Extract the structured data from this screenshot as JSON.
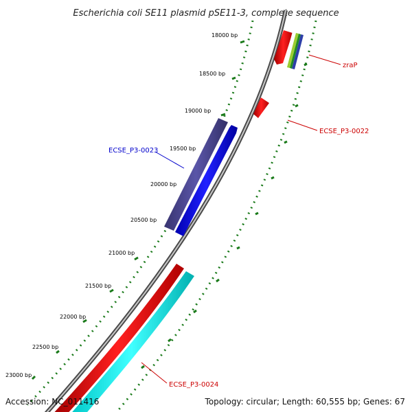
{
  "title": "Escherichia coli SE11 plasmid pSE11-3, complete sequence",
  "footer": {
    "accession": "Accession: NC_011416",
    "summary": "Topology: circular; Length: 60,555 bp; Genes: 67"
  },
  "ticks": [
    "18000 bp",
    "18500 bp",
    "19000 bp",
    "19500 bp",
    "20000 bp",
    "20500 bp",
    "21000 bp",
    "21500 bp",
    "22000 bp",
    "22500 bp",
    "23000 bp"
  ],
  "genes": [
    {
      "name": "zraP",
      "color": "#cc0000"
    },
    {
      "name": "ECSE_P3-0022",
      "color": "#cc0000"
    },
    {
      "name": "ECSE_P3-0023",
      "color": "#0000cc"
    },
    {
      "name": "ECSE_P3-0024",
      "color": "#cc0000"
    }
  ],
  "colors": {
    "backbone": "#8a8a8a",
    "tick": "#1a7a1a",
    "red_feature": "#ff0000",
    "blue_feature": "#0000ff",
    "purple_feature": "#4b4691",
    "cyan_feature": "#00ffff"
  }
}
